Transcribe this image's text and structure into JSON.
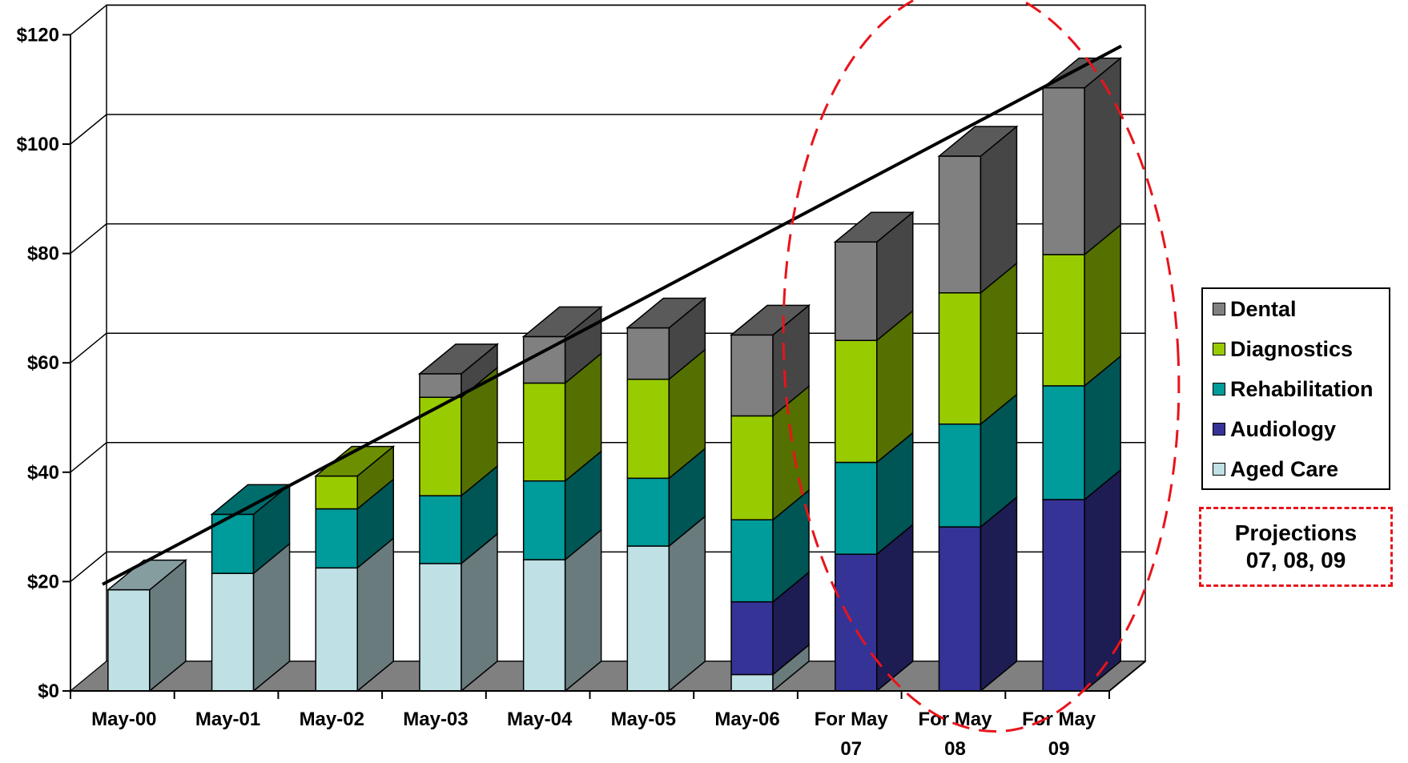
{
  "chart_data": {
    "type": "bar",
    "stacked": true,
    "three_d": true,
    "categories": [
      "May-00",
      "May-01",
      "May-02",
      "May-03",
      "May-04",
      "May-05",
      "May-06",
      "For May 07",
      "For May 08",
      "For May 09"
    ],
    "series": [
      {
        "name": "Aged Care",
        "color": "#bfe0e4",
        "values": [
          18.5,
          21.5,
          22.5,
          23.3,
          24,
          26.5,
          3,
          0,
          0,
          0
        ]
      },
      {
        "name": "Audiology",
        "color": "#353396",
        "values": [
          0,
          0,
          0,
          0,
          0,
          0,
          13.3,
          25,
          30,
          35
        ]
      },
      {
        "name": "Rehabilitation",
        "color": "#009b9b",
        "values": [
          0,
          10.8,
          10.8,
          12.4,
          14.4,
          12.4,
          15,
          16.8,
          18.8,
          20.8
        ]
      },
      {
        "name": "Diagnostics",
        "color": "#99cc00",
        "values": [
          0,
          0,
          6,
          18,
          17.9,
          18.1,
          19,
          22.3,
          24,
          24
        ]
      },
      {
        "name": "Dental",
        "color": "#808080",
        "values": [
          0,
          0,
          0,
          4.3,
          8.5,
          9.4,
          14.8,
          18,
          25,
          30.5
        ]
      }
    ],
    "trendline": {
      "start": 17,
      "end": 115
    },
    "y_ticks": [
      "$0",
      "$20",
      "$40",
      "$60",
      "$80",
      "$100",
      "$120"
    ],
    "ylim": [
      0,
      120
    ],
    "grid": true,
    "legend": "right",
    "annotation": {
      "lines": [
        "Projections",
        "07, 08, 09"
      ]
    }
  }
}
